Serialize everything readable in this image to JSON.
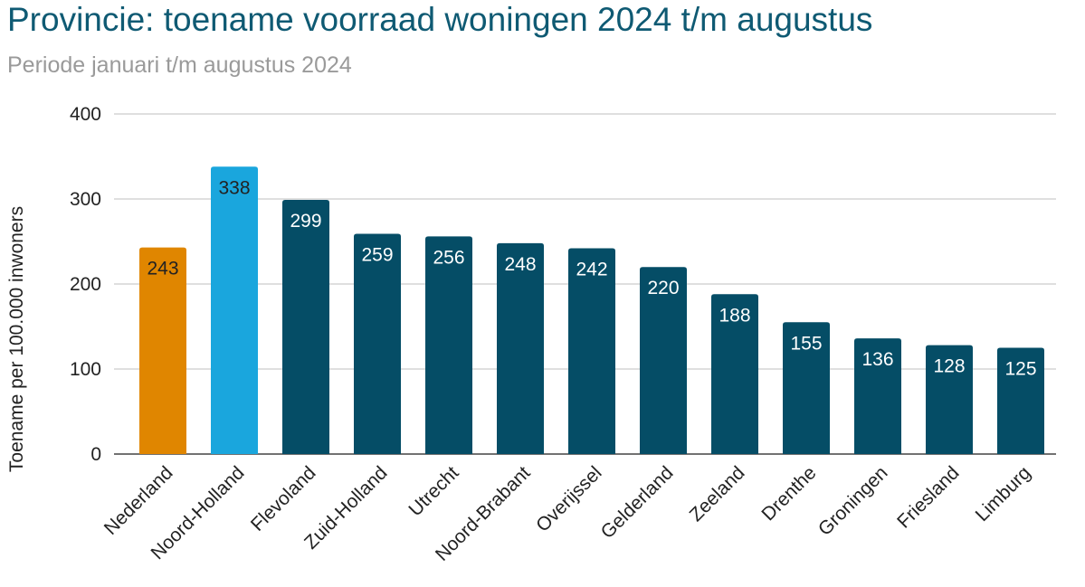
{
  "title": "Provincie: toename voorraad woningen 2024 t/m augustus",
  "subtitle": "Periode januari t/m augustus 2024",
  "colors": {
    "title": "#0f5a73",
    "subtitle": "#9a9a9a",
    "default_bar": "#054d66",
    "highlight_nederland": "#e08600",
    "highlight_noord_holland": "#1aa6dd",
    "grid": "#cccccc"
  },
  "chart_data": {
    "type": "bar",
    "title": "Provincie: toename voorraad woningen 2024 t/m augustus",
    "subtitle": "Periode januari t/m augustus 2024",
    "xlabel": "",
    "ylabel": "Toename per 100.000 inwoners",
    "ylim": [
      0,
      400
    ],
    "yticks": [
      0,
      100,
      200,
      300,
      400
    ],
    "grid": true,
    "legend": "none",
    "categories": [
      "Nederland",
      "Noord-Holland",
      "Flevoland",
      "Zuid-Holland",
      "Utrecht",
      "Noord-Brabant",
      "Overijssel",
      "Gelderland",
      "Zeeland",
      "Drenthe",
      "Groningen",
      "Friesland",
      "Limburg"
    ],
    "values": [
      243,
      338,
      299,
      259,
      256,
      248,
      242,
      220,
      188,
      155,
      136,
      128,
      125
    ],
    "bar_colors": [
      "#e08600",
      "#1aa6dd",
      "#054d66",
      "#054d66",
      "#054d66",
      "#054d66",
      "#054d66",
      "#054d66",
      "#054d66",
      "#054d66",
      "#054d66",
      "#054d66",
      "#054d66"
    ],
    "label_colors": [
      "#222222",
      "#222222",
      "#ffffff",
      "#ffffff",
      "#ffffff",
      "#ffffff",
      "#ffffff",
      "#ffffff",
      "#ffffff",
      "#ffffff",
      "#ffffff",
      "#ffffff",
      "#ffffff"
    ]
  }
}
